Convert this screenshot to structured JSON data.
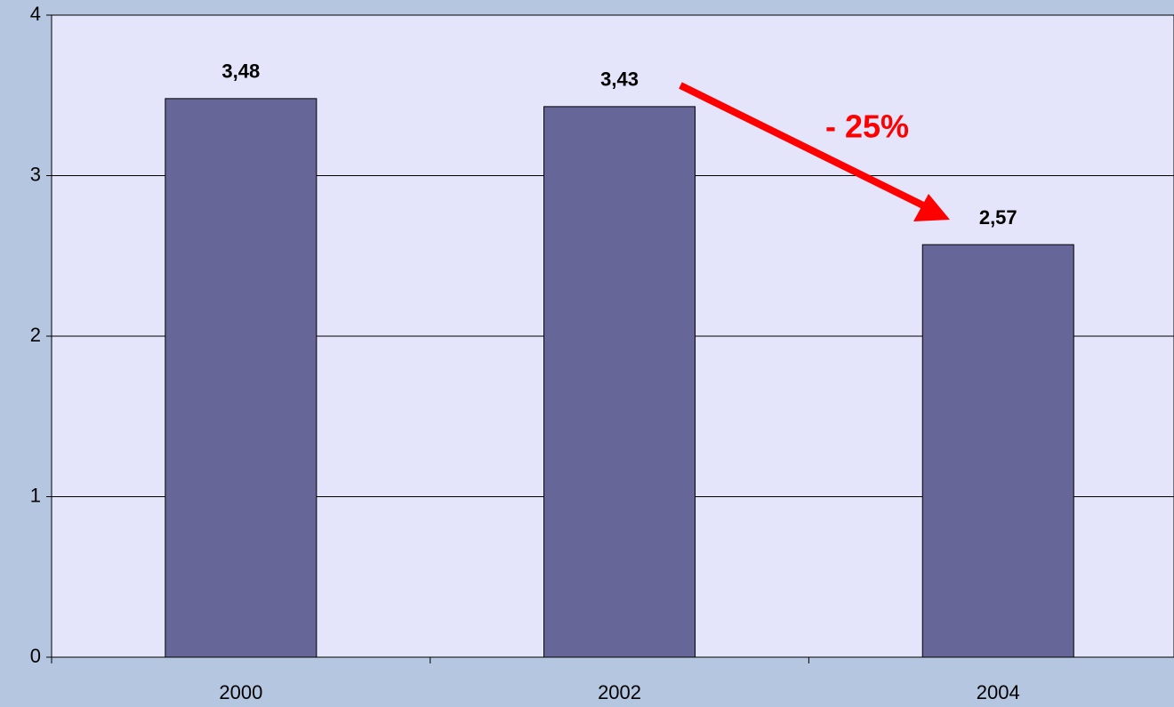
{
  "chart_data": {
    "type": "bar",
    "categories": [
      "2000",
      "2002",
      "2004"
    ],
    "values": [
      3.48,
      3.43,
      2.57
    ],
    "value_labels": [
      "3,48",
      "3,43",
      "2,57"
    ],
    "color": "#666699",
    "ylim": [
      0,
      4
    ],
    "yticks": [
      0,
      1,
      2,
      3,
      4
    ],
    "grid": true,
    "annotation": "- 25%"
  }
}
